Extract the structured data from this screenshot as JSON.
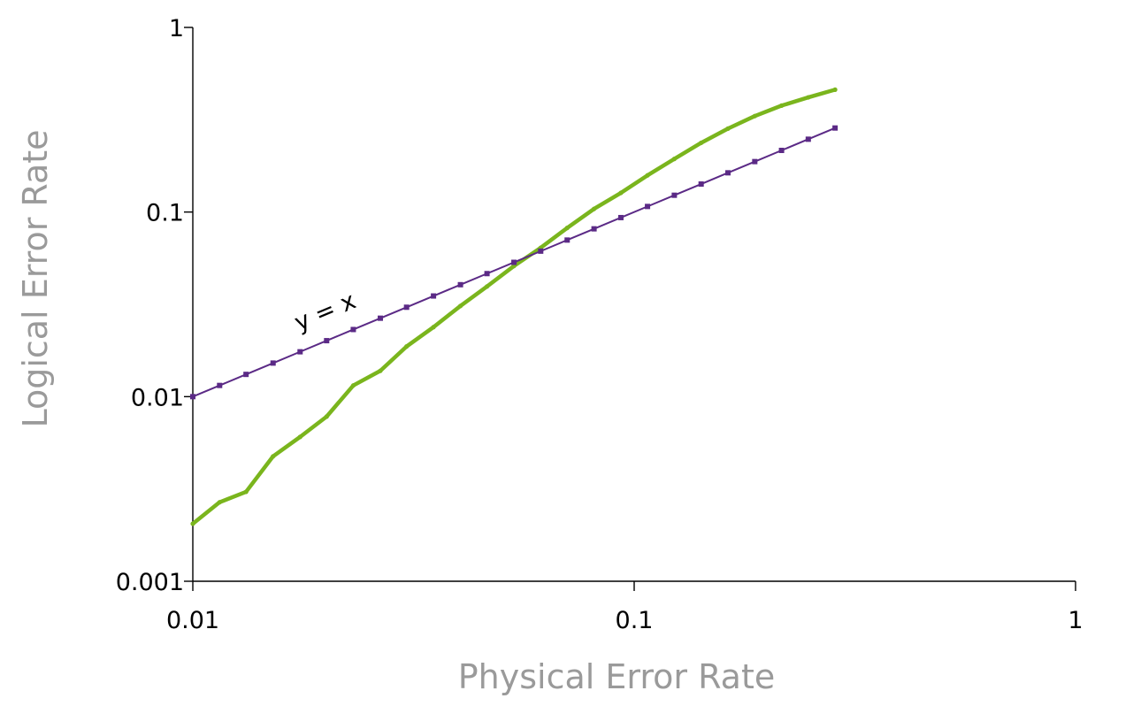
{
  "chart_data": {
    "type": "line",
    "xscale": "log",
    "yscale": "log",
    "xlim": [
      0.01,
      1
    ],
    "ylim": [
      0.001,
      1
    ],
    "xlabel": "Physical Error Rate",
    "ylabel": "Logical Error Rate",
    "x_ticks": [
      "0.01",
      "0.1",
      "1"
    ],
    "y_ticks": [
      "0.001",
      "0.01",
      "0.1",
      "1"
    ],
    "grid": false,
    "annotations": [
      {
        "text": "y = x",
        "series": "reference"
      }
    ],
    "series": [
      {
        "color": "#7ab51d",
        "line_width": "thick",
        "marker": "small-dot",
        "points": [
          [
            0.01,
            0.00205
          ],
          [
            0.0115,
            0.00268
          ],
          [
            0.0132,
            0.00305
          ],
          [
            0.0152,
            0.00475
          ],
          [
            0.0175,
            0.00605
          ],
          [
            0.0201,
            0.0078
          ],
          [
            0.0231,
            0.0115
          ],
          [
            0.0266,
            0.0138
          ],
          [
            0.0305,
            0.0187
          ],
          [
            0.0351,
            0.0238
          ],
          [
            0.0404,
            0.031
          ],
          [
            0.0464,
            0.0395
          ],
          [
            0.0534,
            0.051
          ],
          [
            0.0614,
            0.064
          ],
          [
            0.0705,
            0.082
          ],
          [
            0.0811,
            0.104
          ],
          [
            0.0933,
            0.127
          ],
          [
            0.1072,
            0.158
          ],
          [
            0.1233,
            0.194
          ],
          [
            0.1418,
            0.237
          ],
          [
            0.1631,
            0.283
          ],
          [
            0.1876,
            0.331
          ],
          [
            0.2157,
            0.377
          ],
          [
            0.248,
            0.418
          ],
          [
            0.2852,
            0.46
          ]
        ]
      },
      {
        "color": "#5b2a86",
        "line_width": "thin",
        "marker": "square",
        "points": [
          [
            0.01,
            0.01
          ],
          [
            0.0115,
            0.0115
          ],
          [
            0.0132,
            0.0132
          ],
          [
            0.0152,
            0.0152
          ],
          [
            0.0175,
            0.0175
          ],
          [
            0.0201,
            0.0201
          ],
          [
            0.0231,
            0.0231
          ],
          [
            0.0266,
            0.0266
          ],
          [
            0.0305,
            0.0305
          ],
          [
            0.0351,
            0.0351
          ],
          [
            0.0404,
            0.0404
          ],
          [
            0.0464,
            0.0464
          ],
          [
            0.0534,
            0.0534
          ],
          [
            0.0614,
            0.0614
          ],
          [
            0.0705,
            0.0705
          ],
          [
            0.0811,
            0.0811
          ],
          [
            0.0933,
            0.0933
          ],
          [
            0.1072,
            0.1072
          ],
          [
            0.1233,
            0.1233
          ],
          [
            0.1418,
            0.1418
          ],
          [
            0.1631,
            0.1631
          ],
          [
            0.1876,
            0.1876
          ],
          [
            0.2157,
            0.2157
          ],
          [
            0.248,
            0.248
          ],
          [
            0.2852,
            0.2852
          ]
        ]
      }
    ]
  }
}
